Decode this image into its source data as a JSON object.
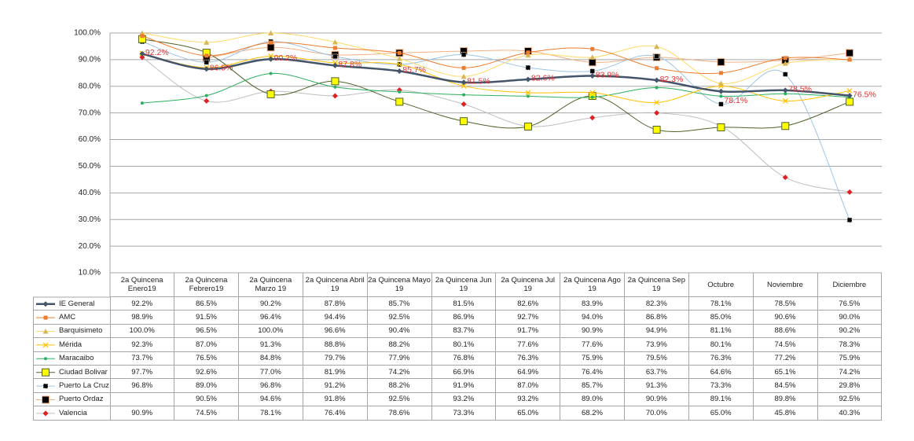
{
  "chart_data": {
    "type": "line",
    "categories": [
      "2a Quincena Enero19",
      "2a Quincena Febrero19",
      "2a Quincena Marzo 19",
      "2a Quincena Abril 19",
      "2a Quincena Mayo 19",
      "2a Quincena Jun 19",
      "2a Quincena Jul 19",
      "2a Quincena Ago 19",
      "2a Quincena Sep 19",
      "Octubre",
      "Noviembre",
      "Diciembre"
    ],
    "ylim": [
      10,
      100
    ],
    "yticks": [
      {
        "value": 10,
        "label": "10.0%"
      },
      {
        "value": 20,
        "label": "20.0%"
      },
      {
        "value": 30,
        "label": "30.0%"
      },
      {
        "value": 40,
        "label": "40.0%"
      },
      {
        "value": 50,
        "label": "50.0%"
      },
      {
        "value": 60,
        "label": "60.0%"
      },
      {
        "value": 70,
        "label": "70.0%"
      },
      {
        "value": 80,
        "label": "80.0%"
      },
      {
        "value": 90,
        "label": "90.0%"
      },
      {
        "value": 100,
        "label": "100.0%"
      }
    ],
    "grid": true,
    "smooth": true,
    "series": [
      {
        "name": "IE General",
        "color": "#44546a",
        "marker": "diamond",
        "marker_color": "#44546a",
        "width": 2.5,
        "show_labels": true,
        "label_color": "#e03030",
        "values": [
          92.2,
          86.5,
          90.2,
          87.8,
          85.7,
          81.5,
          82.6,
          83.9,
          82.3,
          78.1,
          78.5,
          76.5
        ],
        "value_labels": [
          "92.2%",
          "86.5%",
          "90.2%",
          "87.8%",
          "85.7%",
          "81.5%",
          "82.6%",
          "83.9%",
          "82.3%",
          "78.1%",
          "78.5%",
          "76.5%"
        ]
      },
      {
        "name": "AMC",
        "color": "#ed7d31",
        "marker": "square",
        "marker_color": "#ed7d31",
        "width": 1,
        "values": [
          98.9,
          91.5,
          96.4,
          94.4,
          92.5,
          86.9,
          92.7,
          94.0,
          86.8,
          85.0,
          90.6,
          90.0
        ],
        "value_labels": [
          "98.9%",
          "91.5%",
          "96.4%",
          "94.4%",
          "92.5%",
          "86.9%",
          "92.7%",
          "94.0%",
          "86.8%",
          "85.0%",
          "90.6%",
          "90.0%"
        ]
      },
      {
        "name": "Barquisimeto",
        "color": "#ffd966",
        "marker": "triangle",
        "marker_color": "#d6b656",
        "width": 1,
        "values": [
          100.0,
          96.5,
          100.0,
          96.6,
          90.4,
          83.7,
          91.7,
          90.9,
          94.9,
          81.1,
          88.6,
          90.2
        ],
        "value_labels": [
          "100.0%",
          "96.5%",
          "100.0%",
          "96.6%",
          "90.4%",
          "83.7%",
          "91.7%",
          "90.9%",
          "94.9%",
          "81.1%",
          "88.6%",
          "90.2%"
        ]
      },
      {
        "name": "Mérida",
        "color": "#ffc000",
        "marker": "x",
        "marker_color": "#ffc000",
        "width": 1,
        "values": [
          92.3,
          87.0,
          91.3,
          88.8,
          88.2,
          80.1,
          77.6,
          77.6,
          73.9,
          80.1,
          74.5,
          78.3
        ],
        "value_labels": [
          "92.3%",
          "87.0%",
          "91.3%",
          "88.8%",
          "88.2%",
          "80.1%",
          "77.6%",
          "77.6%",
          "73.9%",
          "80.1%",
          "74.5%",
          "78.3%"
        ]
      },
      {
        "name": "Maracaibo",
        "color": "#2eb060",
        "marker": "circle",
        "marker_color": "#2eb060",
        "width": 1,
        "values": [
          73.7,
          76.5,
          84.8,
          79.7,
          77.9,
          76.8,
          76.3,
          75.9,
          79.5,
          76.3,
          77.2,
          75.9
        ],
        "value_labels": [
          "73.7%",
          "76.5%",
          "84.8%",
          "79.7%",
          "77.9%",
          "76.8%",
          "76.3%",
          "75.9%",
          "79.5%",
          "76.3%",
          "77.2%",
          "75.9%"
        ]
      },
      {
        "name": "Ciudad Bolivar",
        "color": "#4f6228",
        "marker": "square-big",
        "marker_color": "#ffff00",
        "width": 1,
        "values": [
          97.7,
          92.6,
          77.0,
          81.9,
          74.2,
          66.9,
          64.9,
          76.4,
          63.7,
          64.6,
          65.1,
          74.2
        ],
        "value_labels": [
          "97.7%",
          "92.6%",
          "77.0%",
          "81.9%",
          "74.2%",
          "66.9%",
          "64.9%",
          "76.4%",
          "63.7%",
          "64.6%",
          "65.1%",
          "74.2%"
        ]
      },
      {
        "name": "Puerto La Cruz",
        "color": "#9dc3e6",
        "marker": "square-dotted",
        "marker_color": "#000000",
        "width": 1,
        "values": [
          96.8,
          89.0,
          96.8,
          91.2,
          88.2,
          91.9,
          87.0,
          85.7,
          91.3,
          73.3,
          84.5,
          29.8
        ],
        "value_labels": [
          "96.8%",
          "89.0%",
          "96.8%",
          "91.2%",
          "88.2%",
          "91.9%",
          "87.0%",
          "85.7%",
          "91.3%",
          "73.3%",
          "84.5%",
          "29.8%"
        ]
      },
      {
        "name": "Puerto Ordaz",
        "color": "#f4b183",
        "marker": "square-big",
        "marker_color": "#000000",
        "width": 1,
        "values": [
          null,
          90.5,
          94.6,
          91.8,
          92.5,
          93.2,
          93.2,
          89.0,
          90.9,
          89.1,
          89.8,
          92.5
        ],
        "value_labels": [
          null,
          "90.5%",
          "94.6%",
          "91.8%",
          "92.5%",
          "93.2%",
          "93.2%",
          "89.0%",
          "90.9%",
          "89.1%",
          "89.8%",
          "92.5%"
        ]
      },
      {
        "name": "Valencia",
        "color": "#bfbfbf",
        "marker": "diamond",
        "marker_color": "#e02020",
        "width": 1,
        "values": [
          90.9,
          74.5,
          78.1,
          76.4,
          78.6,
          73.3,
          65.0,
          68.2,
          70.0,
          65.0,
          45.8,
          40.3
        ],
        "value_labels": [
          "90.9%",
          "74.5%",
          "78.1%",
          "76.4%",
          "78.6%",
          "73.3%",
          "65.0%",
          "68.2%",
          "70.0%",
          "65.0%",
          "45.8%",
          "40.3%"
        ]
      }
    ]
  }
}
